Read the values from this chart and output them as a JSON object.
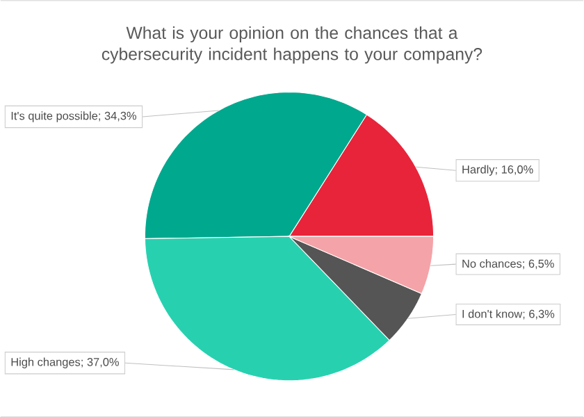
{
  "chart_data": {
    "type": "pie",
    "title": "What is your opinion on the chances that a cybersecurity incident happens to your company?",
    "categories": [
      "Hardly",
      "It's quite possible",
      "High changes",
      "I don't know",
      "No chances"
    ],
    "values": [
      16.0,
      34.3,
      37.0,
      6.3,
      6.5
    ],
    "value_labels": [
      "; 16,0%",
      "; 34,3%",
      "; 37,0%",
      "; 6,3%",
      "; 6,5%"
    ],
    "colors": [
      "#e8243a",
      "#00a88e",
      "#27d1b0",
      "#555555",
      "#f4a3a8"
    ]
  }
}
